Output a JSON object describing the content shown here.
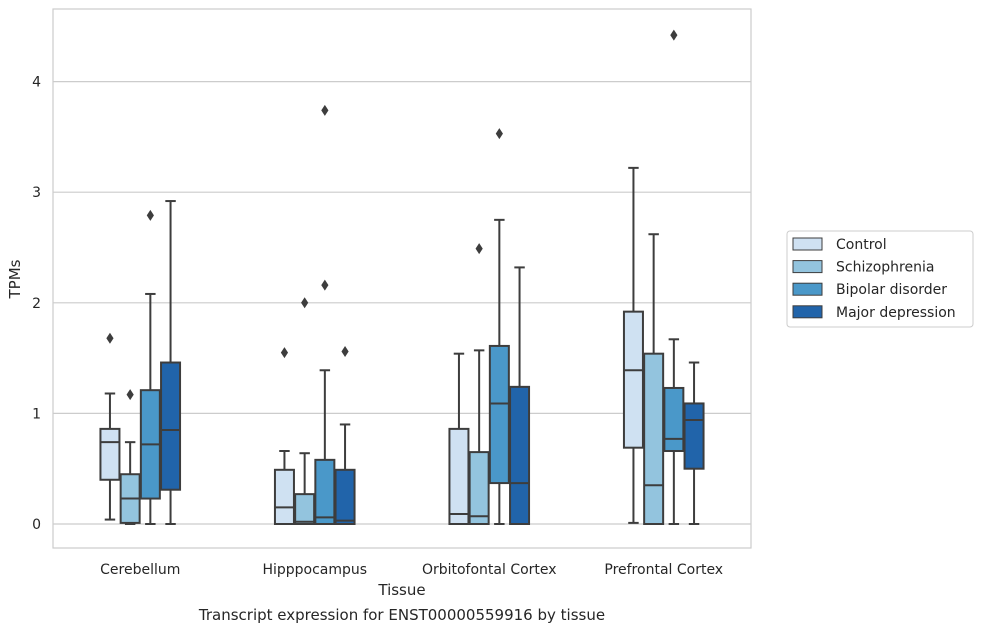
{
  "caption": "Transcript expression for ENST00000559916 by tissue",
  "chart_data": {
    "type": "box",
    "xlabel": "Tissue",
    "ylabel": "TPMs",
    "ylim": [
      -0.22,
      4.65
    ],
    "yticks": [
      0,
      1,
      2,
      3,
      4
    ],
    "categories": [
      "Cerebellum",
      "Hipppocampus",
      "Orbitofontal Cortex",
      "Prefrontal Cortex"
    ],
    "grid": "horizontal",
    "legend_position": "right",
    "series": [
      {
        "name": "Control",
        "color": "#cfe1f2",
        "boxes": [
          {
            "whislo": 0.04,
            "q1": 0.4,
            "med": 0.74,
            "q3": 0.86,
            "whishi": 1.18,
            "fliers": [
              1.68
            ]
          },
          {
            "whislo": 0.0,
            "q1": 0.0,
            "med": 0.15,
            "q3": 0.49,
            "whishi": 0.66,
            "fliers": [
              1.55
            ]
          },
          {
            "whislo": 0.0,
            "q1": 0.0,
            "med": 0.09,
            "q3": 0.86,
            "whishi": 1.54,
            "fliers": []
          },
          {
            "whislo": 0.01,
            "q1": 0.69,
            "med": 1.39,
            "q3": 1.92,
            "whishi": 3.22,
            "fliers": []
          }
        ]
      },
      {
        "name": "Schizophrenia",
        "color": "#93c4de",
        "boxes": [
          {
            "whislo": 0.0,
            "q1": 0.01,
            "med": 0.23,
            "q3": 0.45,
            "whishi": 0.74,
            "fliers": [
              1.17
            ]
          },
          {
            "whislo": 0.0,
            "q1": 0.0,
            "med": 0.02,
            "q3": 0.27,
            "whishi": 0.64,
            "fliers": [
              2.0
            ]
          },
          {
            "whislo": 0.0,
            "q1": 0.0,
            "med": 0.07,
            "q3": 0.65,
            "whishi": 1.57,
            "fliers": [
              2.49
            ]
          },
          {
            "whislo": 0.0,
            "q1": 0.0,
            "med": 0.35,
            "q3": 1.54,
            "whishi": 2.62,
            "fliers": []
          }
        ]
      },
      {
        "name": "Bipolar disorder",
        "color": "#4a98c9",
        "boxes": [
          {
            "whislo": 0.0,
            "q1": 0.23,
            "med": 0.72,
            "q3": 1.21,
            "whishi": 2.08,
            "fliers": [
              2.79
            ]
          },
          {
            "whislo": 0.0,
            "q1": 0.0,
            "med": 0.06,
            "q3": 0.58,
            "whishi": 1.39,
            "fliers": [
              2.16,
              3.74
            ]
          },
          {
            "whislo": 0.0,
            "q1": 0.37,
            "med": 1.09,
            "q3": 1.61,
            "whishi": 2.75,
            "fliers": [
              3.53
            ]
          },
          {
            "whislo": 0.0,
            "q1": 0.66,
            "med": 0.77,
            "q3": 1.23,
            "whishi": 1.67,
            "fliers": [
              4.42
            ]
          }
        ]
      },
      {
        "name": "Major depression",
        "color": "#2164aa",
        "boxes": [
          {
            "whislo": 0.0,
            "q1": 0.31,
            "med": 0.85,
            "q3": 1.46,
            "whishi": 2.92,
            "fliers": []
          },
          {
            "whislo": 0.0,
            "q1": 0.0,
            "med": 0.03,
            "q3": 0.49,
            "whishi": 0.9,
            "fliers": [
              1.56
            ]
          },
          {
            "whislo": 0.0,
            "q1": 0.0,
            "med": 0.37,
            "q3": 1.24,
            "whishi": 2.32,
            "fliers": []
          },
          {
            "whislo": 0.0,
            "q1": 0.5,
            "med": 0.94,
            "q3": 1.09,
            "whishi": 1.46,
            "fliers": []
          }
        ]
      }
    ]
  }
}
